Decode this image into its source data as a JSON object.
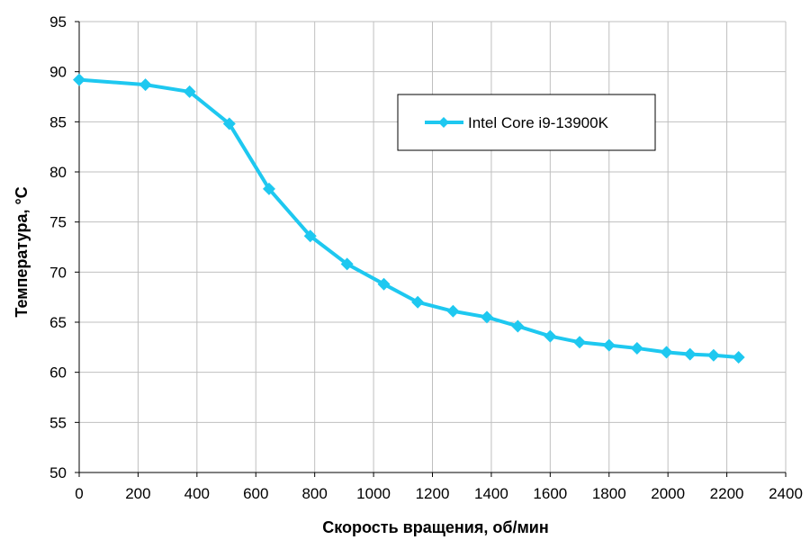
{
  "chart_data": {
    "type": "line",
    "xlabel": "Скорость вращения, об/мин",
    "ylabel": "Температура, °C",
    "xlim": [
      0,
      2400
    ],
    "ylim": [
      50,
      95
    ],
    "xticks": [
      0,
      200,
      400,
      600,
      800,
      1000,
      1200,
      1400,
      1600,
      1800,
      2000,
      2200,
      2400
    ],
    "yticks": [
      50,
      55,
      60,
      65,
      70,
      75,
      80,
      85,
      90,
      95
    ],
    "grid": true,
    "legend_position": "top-right",
    "series": [
      {
        "name": "Intel Core i9-13900K",
        "color": "#1ec8f0",
        "marker": "diamond",
        "x": [
          0,
          225,
          375,
          510,
          645,
          785,
          910,
          1035,
          1150,
          1270,
          1385,
          1490,
          1600,
          1700,
          1800,
          1895,
          1995,
          2075,
          2155,
          2240
        ],
        "y": [
          89.2,
          88.7,
          88.0,
          84.8,
          78.3,
          73.6,
          70.8,
          68.8,
          67.0,
          66.1,
          65.5,
          64.6,
          63.6,
          63.0,
          62.7,
          62.4,
          62.0,
          61.8,
          61.7,
          61.5
        ]
      }
    ]
  }
}
